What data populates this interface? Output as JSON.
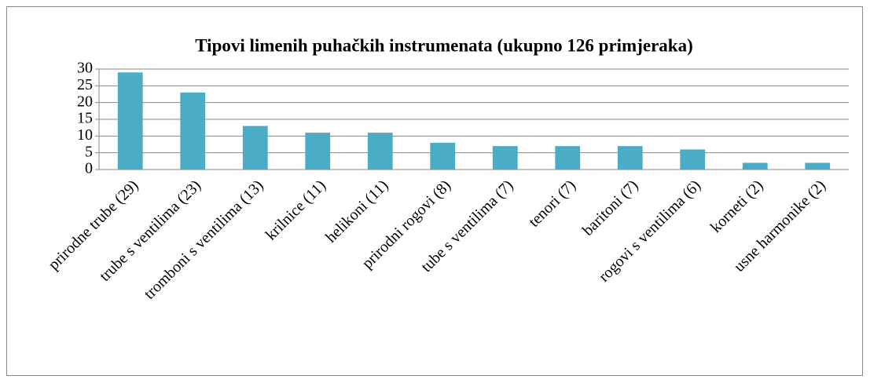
{
  "chart_data": {
    "type": "bar",
    "title": "Tipovi limenih puhačkih instrumenata (ukupno 126 primjeraka)",
    "categories": [
      "prirodne trube (29)",
      "trube s ventilima (23)",
      "tromboni s ventilima (13)",
      "krilnice (11)",
      "helikoni (11)",
      "prirodni rogovi (8)",
      "tube s ventilima (7)",
      "tenori (7)",
      "baritoni (7)",
      "rogovi s ventilima (6)",
      "korneti (2)",
      "usne harmonike (2)"
    ],
    "values": [
      29,
      23,
      13,
      11,
      11,
      8,
      7,
      7,
      7,
      6,
      2,
      2
    ],
    "color": "#4bacc6",
    "ylim": [
      0,
      30
    ],
    "yticks": [
      0,
      5,
      10,
      15,
      20,
      25,
      30
    ],
    "grid": true
  }
}
